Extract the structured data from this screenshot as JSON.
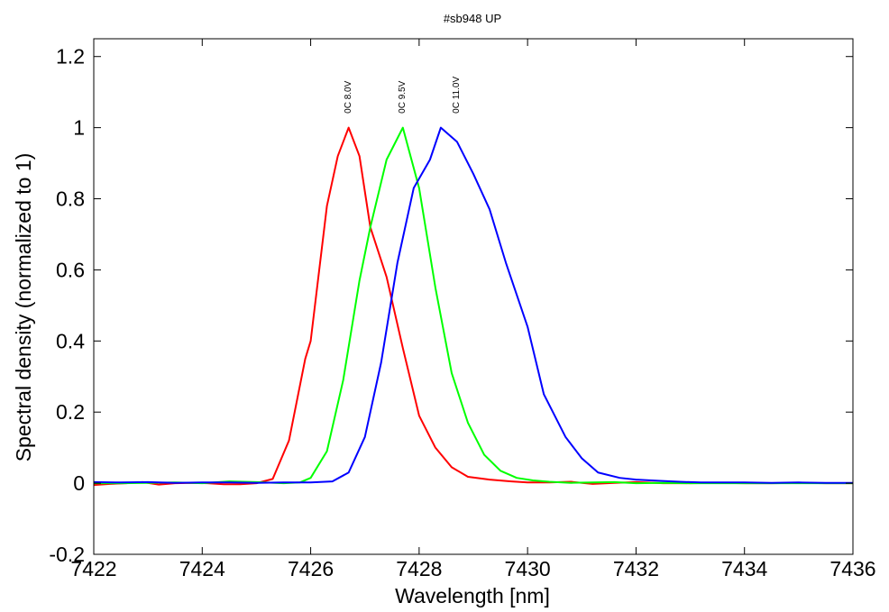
{
  "chart_data": {
    "type": "line",
    "title": "#sb948 UP",
    "xlabel": "Wavelength [nm]",
    "ylabel": "Spectral density (normalized to 1)",
    "xlim": [
      7422,
      7436
    ],
    "ylim": [
      -0.2,
      1.25
    ],
    "xticks": [
      7422,
      7424,
      7426,
      7428,
      7430,
      7432,
      7434,
      7436
    ],
    "xtick_labels": [
      "7422",
      "7424",
      "7426",
      "7428",
      "7430",
      "7432",
      "7434",
      "7436"
    ],
    "yticks": [
      -0.2,
      0,
      0.2,
      0.4,
      0.6,
      0.8,
      1,
      1.2
    ],
    "ytick_labels": [
      "-0.2",
      "0",
      "0.2",
      "0.4",
      "0.6",
      "0.8",
      "1",
      "1.2"
    ],
    "grid": false,
    "legend": "none",
    "series": [
      {
        "color": "#ff0000",
        "x": [
          7422,
          7422.3,
          7422.6,
          7422.9,
          7423.2,
          7423.5,
          7423.8,
          7424.1,
          7424.4,
          7424.7,
          7425.0,
          7425.3,
          7425.6,
          7425.9,
          7426.0,
          7426.3,
          7426.5,
          7426.7,
          7426.9,
          7427.1,
          7427.4,
          7427.7,
          7428.0,
          7428.3,
          7428.6,
          7428.9,
          7429.3,
          7429.7,
          7430.0,
          7430.4,
          7430.8,
          7431.2,
          7431.6,
          7432.0,
          7432.5,
          7433,
          7433.5,
          7434,
          7434.5,
          7435,
          7435.5,
          7436
        ],
        "y": [
          -0.005,
          -0.002,
          0.0,
          0.003,
          -0.004,
          0.0,
          0.001,
          0.0,
          -0.003,
          -0.003,
          0.0,
          0.012,
          0.12,
          0.35,
          0.4,
          0.78,
          0.92,
          1.0,
          0.92,
          0.72,
          0.58,
          0.38,
          0.19,
          0.1,
          0.045,
          0.018,
          0.01,
          0.005,
          0.002,
          0.002,
          0.004,
          -0.002,
          0.001,
          0.003,
          0.0,
          0.0,
          0.001,
          0.0,
          0.0,
          0.001,
          0.0,
          0.0
        ]
      },
      {
        "color": "#00ff00",
        "x": [
          7422,
          7422.5,
          7423,
          7423.5,
          7424,
          7424.5,
          7425,
          7425.5,
          7425.8,
          7426.0,
          7426.3,
          7426.6,
          7426.9,
          7427.1,
          7427.4,
          7427.7,
          7428.0,
          7428.3,
          7428.6,
          7428.9,
          7429.2,
          7429.5,
          7429.8,
          7430.1,
          7430.4,
          7430.8,
          7431.2,
          7431.6,
          7432.0,
          7432.5,
          7433,
          7433.5,
          7434,
          7434.5,
          7435,
          7435.5,
          7436
        ],
        "y": [
          0.0,
          0.0,
          0.001,
          0.002,
          0.0,
          0.005,
          0.003,
          0.0,
          0.002,
          0.015,
          0.09,
          0.29,
          0.57,
          0.72,
          0.91,
          1.0,
          0.83,
          0.55,
          0.31,
          0.17,
          0.08,
          0.035,
          0.015,
          0.008,
          0.004,
          0.001,
          0.002,
          0.003,
          0.0,
          0.001,
          0.0,
          0.0,
          0.0,
          0.0,
          0.0,
          0.0,
          0.0
        ]
      },
      {
        "color": "#0000ff",
        "x": [
          7422,
          7422.5,
          7423,
          7423.5,
          7424,
          7424.5,
          7425,
          7425.5,
          7426,
          7426.4,
          7426.7,
          7427.0,
          7427.3,
          7427.6,
          7427.9,
          7428.2,
          7428.4,
          7428.7,
          7429.0,
          7429.3,
          7429.6,
          7430.0,
          7430.3,
          7430.7,
          7431.0,
          7431.3,
          7431.7,
          7432.0,
          7432.4,
          7432.8,
          7433.2,
          7433.6,
          7434,
          7434.5,
          7435,
          7435.5,
          7436
        ],
        "y": [
          0.003,
          0.002,
          0.003,
          0.001,
          0.002,
          0.002,
          0.001,
          0.002,
          0.002,
          0.005,
          0.03,
          0.13,
          0.34,
          0.62,
          0.83,
          0.91,
          1.0,
          0.96,
          0.87,
          0.77,
          0.62,
          0.44,
          0.25,
          0.13,
          0.07,
          0.03,
          0.015,
          0.01,
          0.007,
          0.004,
          0.002,
          0.002,
          0.002,
          0.001,
          0.002,
          0.001,
          0.001
        ]
      }
    ],
    "annotations": [
      {
        "text": "0C 8.0V",
        "x": 7426.67,
        "y": 1.04
      },
      {
        "text": "0C 9.5V",
        "x": 7427.67,
        "y": 1.04
      },
      {
        "text": "0C 11.0V",
        "x": 7428.67,
        "y": 1.04
      }
    ]
  }
}
